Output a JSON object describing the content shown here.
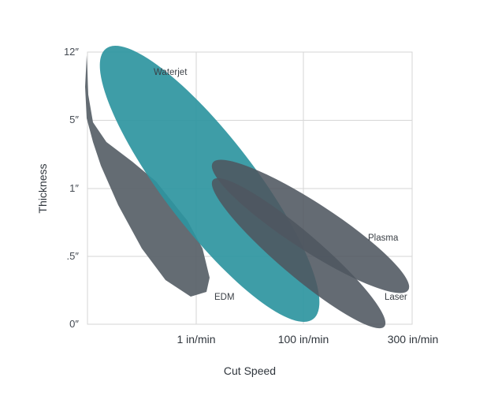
{
  "chart_data": {
    "type": "area",
    "title": "",
    "xlabel": "Cut Speed",
    "ylabel": "Thickness",
    "x_ticks": [
      "",
      "1 in/min",
      "100 in/min",
      "300 in/min"
    ],
    "y_ticks": [
      "0″",
      ".5″",
      "1″",
      "5″",
      "12″"
    ],
    "grid": true,
    "legend": "none",
    "regions": [
      {
        "name": "EDM",
        "shape": "polygon",
        "color": "#5c646c",
        "opacity": 0.95
      },
      {
        "name": "Waterjet",
        "shape": "ellipse",
        "color": "#2e959f",
        "opacity": 0.92
      },
      {
        "name": "Plasma",
        "shape": "ellipse",
        "color": "#4e5760",
        "opacity": 0.88
      },
      {
        "name": "Laser",
        "shape": "ellipse",
        "color": "#4e5760",
        "opacity": 0.88
      }
    ]
  },
  "colors": {
    "edm": "#5c646c",
    "waterjet": "#2e959f",
    "dark": "#4e5760",
    "grid": "#d6d6d6",
    "text": "#2f353c"
  }
}
